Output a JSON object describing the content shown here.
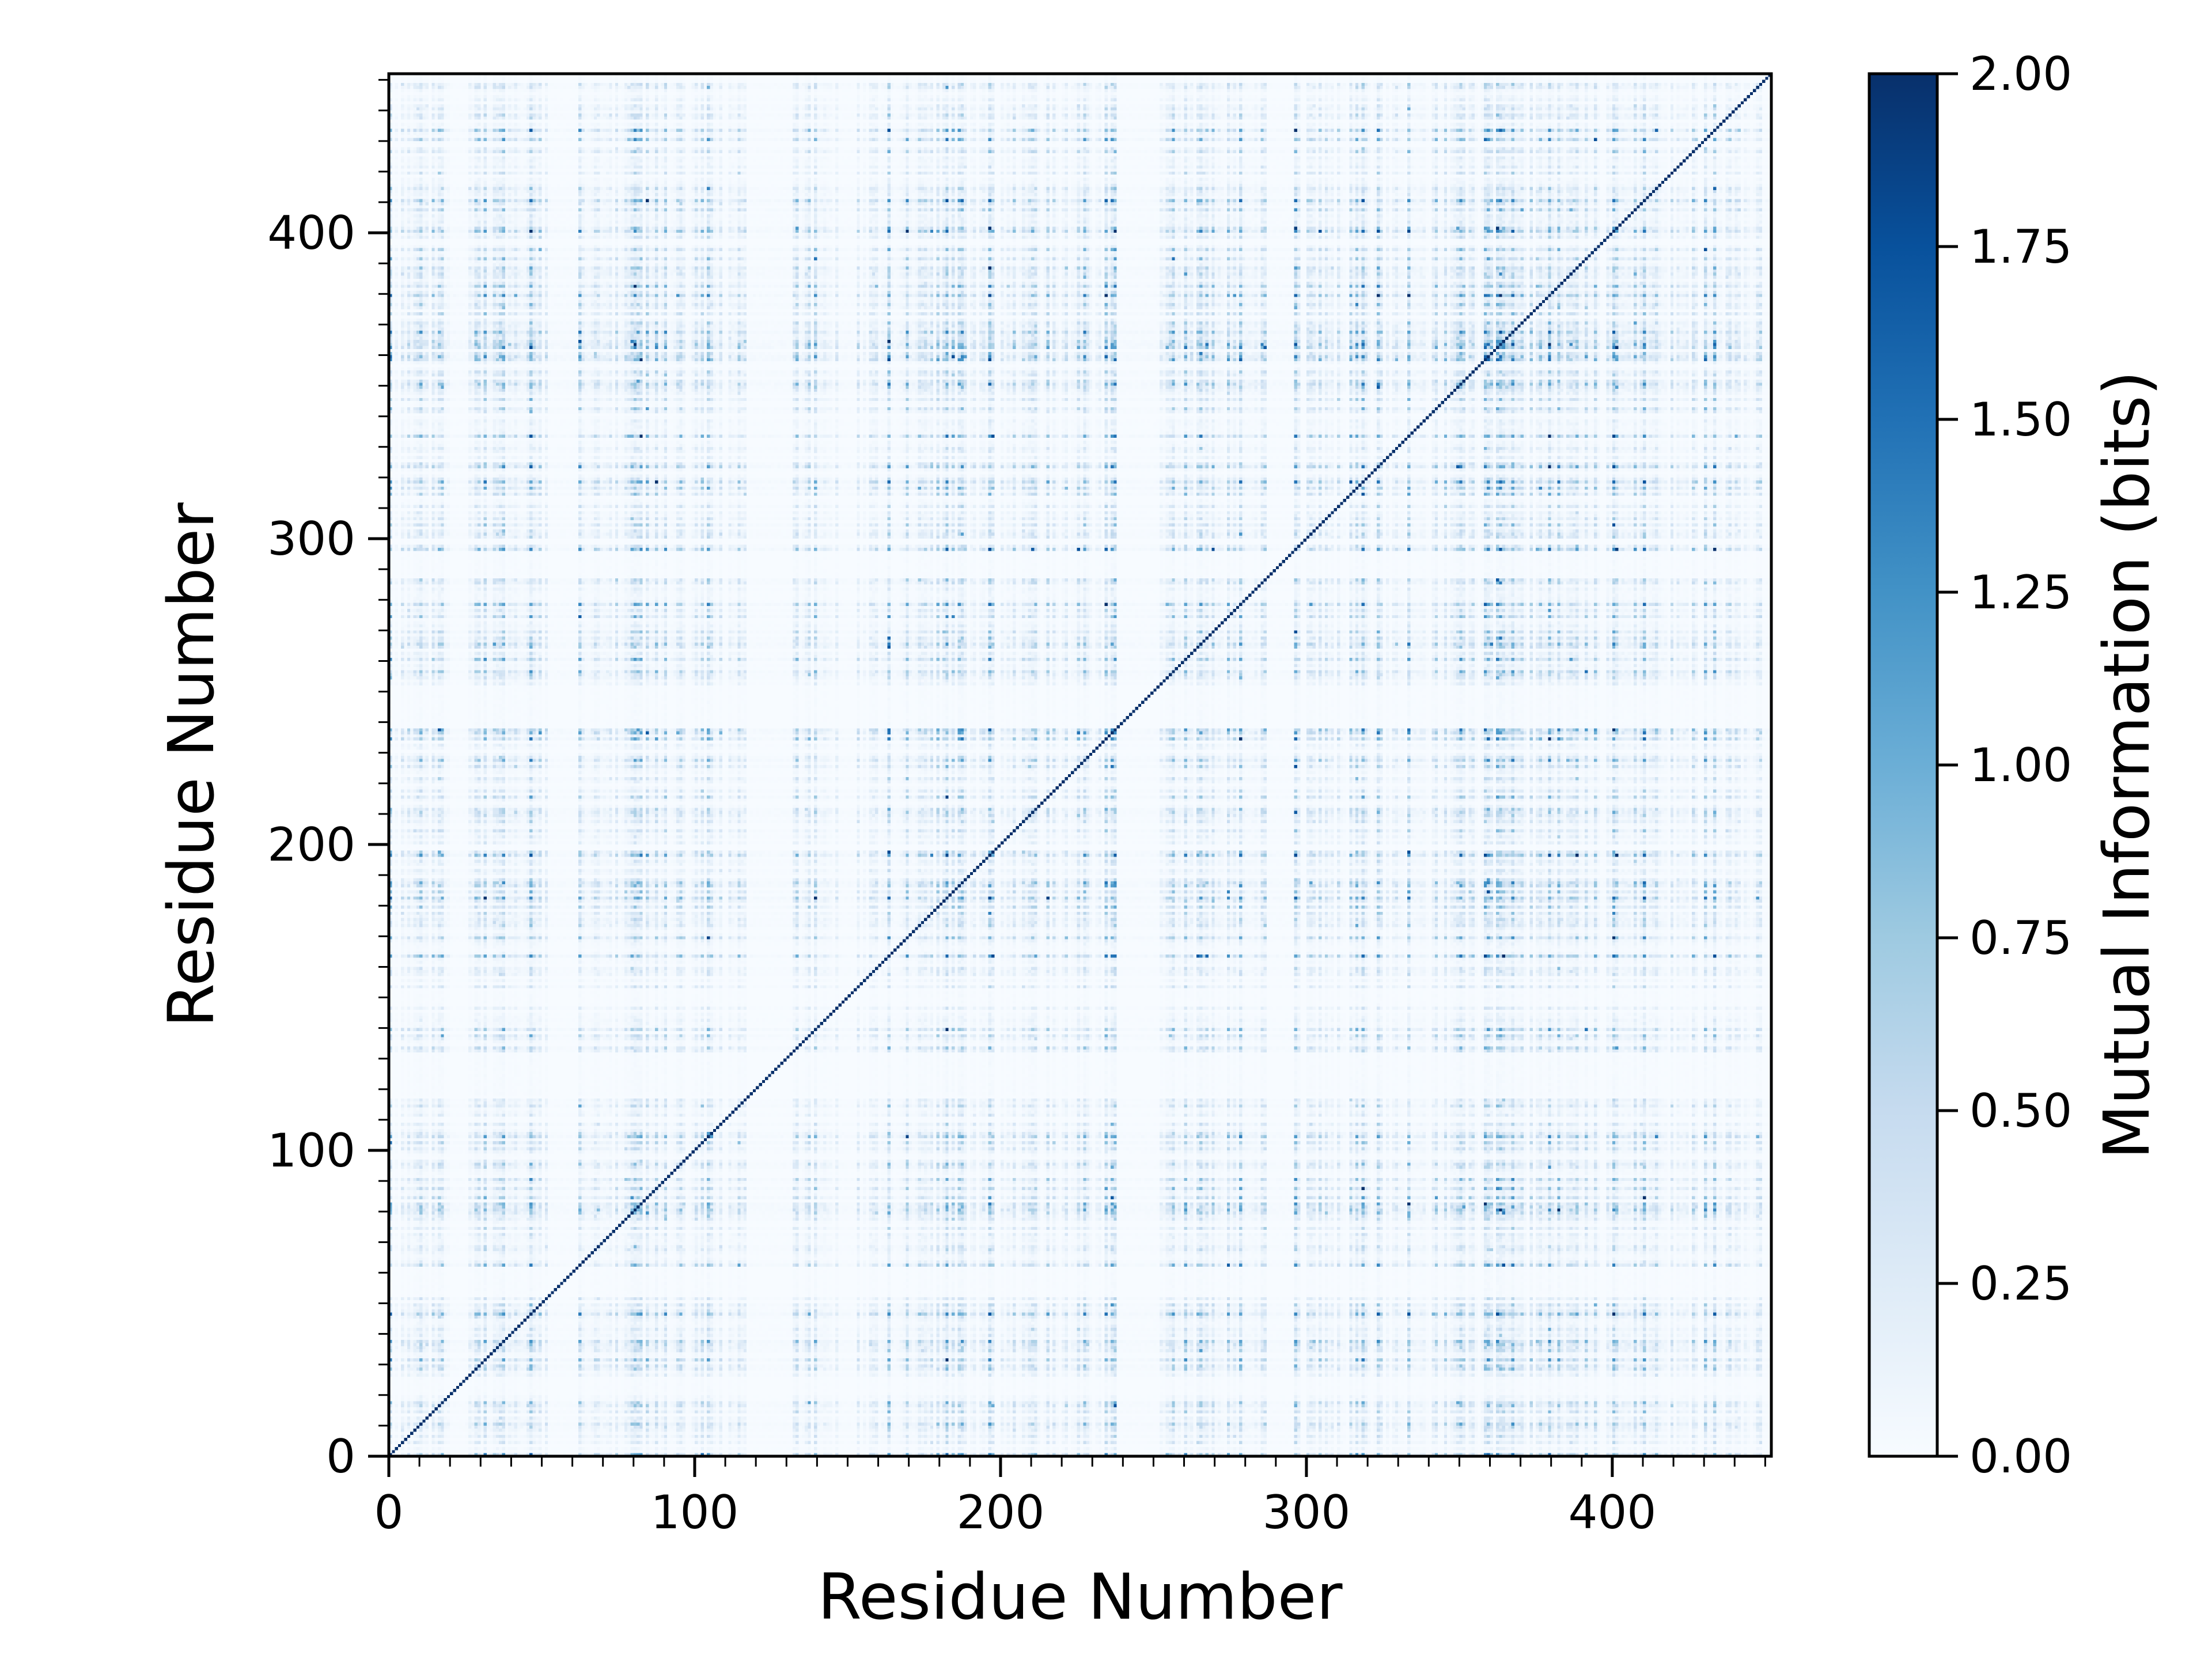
{
  "chart_data": {
    "type": "heatmap",
    "title": "",
    "xlabel": "Residue Number",
    "ylabel": "Residue Number",
    "n_residues": 452,
    "xlim": [
      0,
      452
    ],
    "ylim": [
      0,
      452
    ],
    "x_ticks": [
      0,
      100,
      200,
      300,
      400
    ],
    "y_ticks": [
      0,
      100,
      200,
      300,
      400
    ],
    "x_tick_labels": [
      "0",
      "100",
      "200",
      "300",
      "400"
    ],
    "y_tick_labels": [
      "0",
      "100",
      "200",
      "300",
      "400"
    ],
    "minor_tick_step": 10,
    "colormap": "Blues",
    "colormap_stops": [
      "#f7fbff",
      "#deebf7",
      "#c6dbef",
      "#9ecae1",
      "#6baed6",
      "#4292c6",
      "#2171b5",
      "#08519c",
      "#08306b"
    ],
    "colorbar": {
      "label": "Mutual Information (bits)",
      "min": 0.0,
      "max": 2.0,
      "ticks": [
        0.0,
        0.25,
        0.5,
        0.75,
        1.0,
        1.25,
        1.5,
        1.75,
        2.0
      ],
      "tick_labels": [
        "0.00",
        "0.25",
        "0.50",
        "0.75",
        "1.00",
        "1.25",
        "1.50",
        "1.75",
        "2.00"
      ]
    },
    "low_mi_residue_ranges": [
      [
        20,
        26
      ],
      [
        52,
        62
      ],
      [
        118,
        132
      ],
      [
        147,
        152
      ],
      [
        238,
        252
      ],
      [
        287,
        296
      ],
      [
        449,
        452
      ]
    ],
    "diagonal_max_value": 2.0,
    "typical_value_range": [
      0.1,
      1.6
    ]
  }
}
